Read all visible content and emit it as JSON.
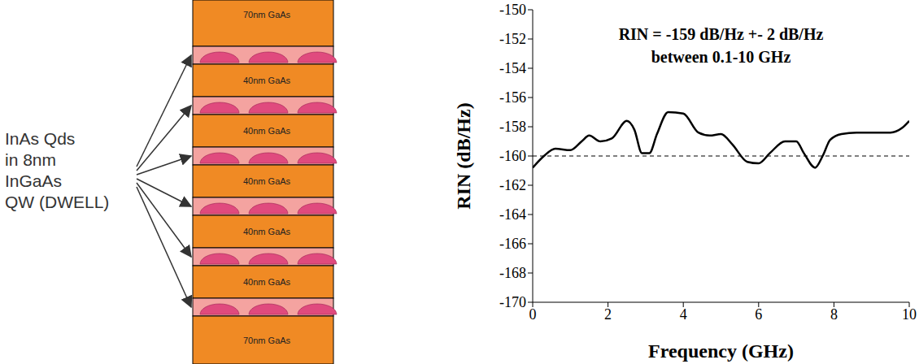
{
  "diagram": {
    "label": [
      "InAs Qds",
      "in 8nm",
      "InGaAs",
      "QW (DWELL)"
    ],
    "layers": [
      "70nm GaAs",
      "40nm GaAs",
      "40nm GaAs",
      "40nm GaAs",
      "40nm GaAs",
      "40nm GaAs",
      "70nm GaAs"
    ]
  },
  "chart_data": {
    "type": "line",
    "annotations": [
      "RIN = -159 dB/Hz +- 2 dB/Hz",
      "between 0.1-10 GHz"
    ],
    "x_label": "Frequency (GHz)",
    "y_label": "RIN (dB/Hz)",
    "x": [
      0,
      0.3,
      0.6,
      1.0,
      1.3,
      1.5,
      1.8,
      2.1,
      2.5,
      2.7,
      2.9,
      3.1,
      3.3,
      3.6,
      4.0,
      4.4,
      4.7,
      5.0,
      5.3,
      5.7,
      6.0,
      6.3,
      6.7,
      7.0,
      7.2,
      7.5,
      7.7,
      7.9,
      8.2,
      8.6,
      9.0,
      9.5,
      9.8,
      10
    ],
    "series": [
      {
        "name": "RIN",
        "color": "#000000",
        "line_style": "solid",
        "values": [
          -160.8,
          -160,
          -159.5,
          -159.6,
          -159,
          -158.6,
          -159,
          -158.8,
          -157.6,
          -158.2,
          -159.8,
          -159.8,
          -158.5,
          -157,
          -157.1,
          -158.4,
          -158.6,
          -158.5,
          -159.2,
          -160.4,
          -160.5,
          -159.8,
          -159,
          -159,
          -159.8,
          -160.8,
          -160,
          -158.9,
          -158.5,
          -158.4,
          -158.4,
          -158.4,
          -158.1,
          -157.6
        ]
      }
    ],
    "hlines": [
      {
        "value": -160,
        "color": "#000000",
        "line_style": "dashed"
      }
    ],
    "xlim": [
      0,
      10
    ],
    "ylim": [
      -170,
      -150
    ],
    "xticks": [
      0,
      2,
      4,
      6,
      8,
      10
    ],
    "yticks": [
      -170,
      -168,
      -166,
      -164,
      -162,
      -160,
      -158,
      -156,
      -154,
      -152,
      -150
    ],
    "grid": false
  }
}
